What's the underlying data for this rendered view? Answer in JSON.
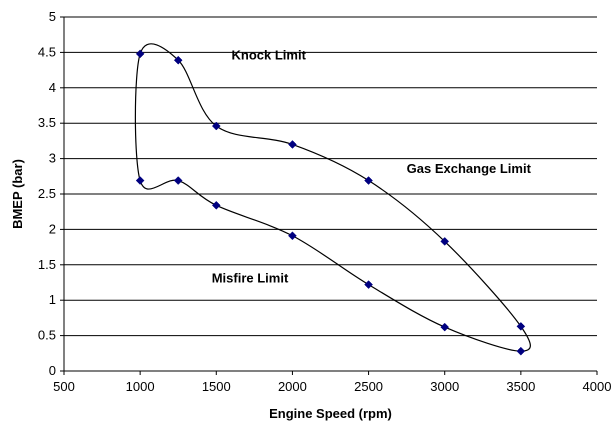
{
  "chart_data": {
    "type": "line",
    "title": "",
    "xlabel": "Engine Speed (rpm)",
    "ylabel": "BMEP (bar)",
    "xlim": [
      500,
      4000
    ],
    "ylim": [
      0,
      5
    ],
    "xticks": [
      500,
      1000,
      1500,
      2000,
      2500,
      3000,
      3500,
      4000
    ],
    "yticks": [
      0,
      0.5,
      1,
      1.5,
      2,
      2.5,
      3,
      3.5,
      4,
      4.5,
      5
    ],
    "xtick_labels": [
      "500",
      "1000",
      "1500",
      "2000",
      "2500",
      "3000",
      "3500",
      "4000"
    ],
    "ytick_labels": [
      "0",
      "0.5",
      "1",
      "1.5",
      "2",
      "2.5",
      "3",
      "3.5",
      "4",
      "4.5",
      "5"
    ],
    "grid": {
      "horizontal": true,
      "vertical": false
    },
    "legend": "none",
    "closed_curve": true,
    "series": [
      {
        "x": [
          1000,
          1250,
          1500,
          2000,
          2500,
          3000,
          3500,
          3500,
          3000,
          2500,
          2000,
          1500,
          1250,
          1000
        ],
        "y": [
          4.48,
          4.39,
          3.46,
          3.2,
          2.69,
          1.83,
          0.63,
          0.28,
          0.62,
          1.22,
          1.91,
          2.34,
          2.69,
          2.69
        ],
        "color": "#000000",
        "marker_color": "#000080",
        "marker": "diamond"
      }
    ],
    "annotations": [
      {
        "text": "Knock Limit",
        "x": 1600,
        "y": 4.4
      },
      {
        "text": "Gas Exchange Limit",
        "x": 2750,
        "y": 2.8
      },
      {
        "text": "Misfire Limit",
        "x": 1470,
        "y": 1.25
      }
    ]
  }
}
